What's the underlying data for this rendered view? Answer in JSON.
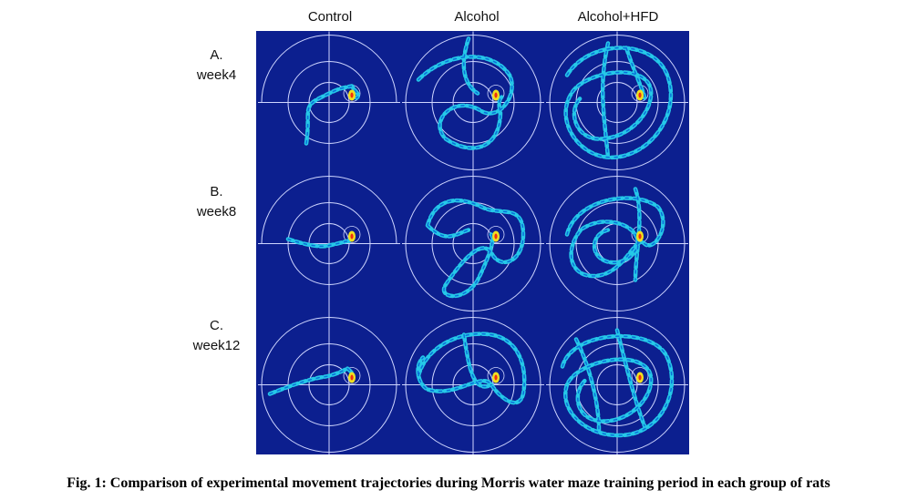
{
  "figure": {
    "columns": [
      "Control",
      "Alcohol",
      "Alcohol+HFD"
    ],
    "rows": [
      {
        "letter": "A.",
        "week": "week4"
      },
      {
        "letter": "B.",
        "week": "week8"
      },
      {
        "letter": "C.",
        "week": "week12"
      }
    ],
    "caption": "Fig. 1: Comparison of experimental movement trajectories during Morris water maze training period in each group of rats",
    "colors": {
      "background": "#0c1f8f",
      "grid": "#cfd6ff",
      "track_outer": "#25c8e8",
      "track_core": "#0a6fd8",
      "hot": "#f0e020",
      "hotter": "#f03010"
    }
  }
}
